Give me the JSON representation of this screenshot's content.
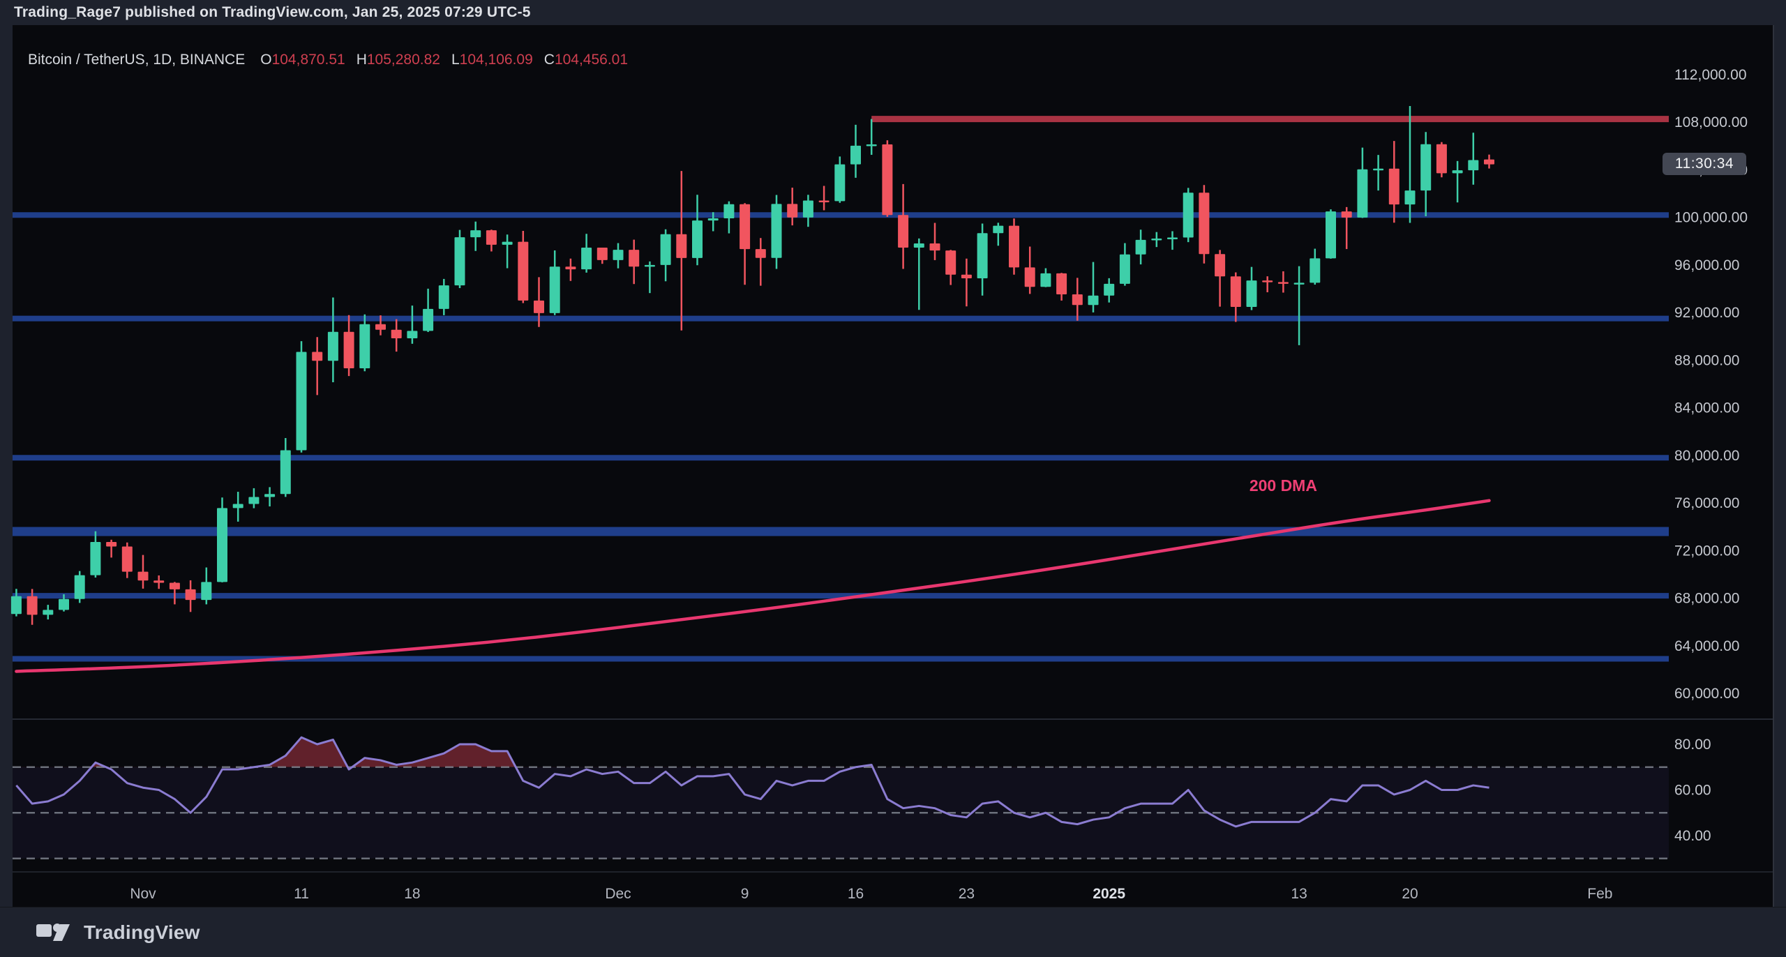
{
  "header": {
    "published_line": "Trading_Rage7 published on TradingView.com, Jan 25, 2025 07:29 UTC-5"
  },
  "chart": {
    "symbol_line": "Bitcoin / TetherUS, 1D, BINANCE",
    "ohlc": {
      "o_label": "O",
      "o": "104,870.51",
      "h_label": "H",
      "h": "105,280.82",
      "l_label": "L",
      "l": "104,106.09",
      "c_label": "C",
      "c": "104,456.01"
    }
  },
  "countdown": {
    "value": "11:30:34"
  },
  "footer": {
    "brand": "TradingView"
  },
  "colors": {
    "page_bg": "#1e222d",
    "chart_bg": "#08090d",
    "up": "#3ecfa9",
    "down": "#f1555f",
    "sr_line": "#1f3e8a",
    "resistance": "#a93343",
    "dma": "#e8376f",
    "dma_label": "#ef3f74",
    "rsi_line": "#8b7cd1",
    "rsi_fill": "#61212b",
    "rsi_band": "rgba(128,98,220,0.07)",
    "guide": "#7d818c",
    "axis_text": "#c5c8cf",
    "time_text": "#b4b8c1",
    "time_text_bold": "#dfe2e8",
    "separator": "#262a34",
    "axis_border": "#2e323c"
  },
  "chart_data": {
    "type": "candlestick",
    "title": "Bitcoin / TetherUS, 1D, BINANCE",
    "price_axis_ticks": [
      112000,
      108000,
      104000,
      100000,
      96000,
      92000,
      88000,
      84000,
      80000,
      76000,
      72000,
      68000,
      64000,
      60000
    ],
    "time_axis_ticks": [
      {
        "label": "Nov",
        "index": 8,
        "bold": false
      },
      {
        "label": "11",
        "index": 18,
        "bold": false
      },
      {
        "label": "18",
        "index": 25,
        "bold": false
      },
      {
        "label": "Dec",
        "index": 38,
        "bold": false
      },
      {
        "label": "9",
        "index": 46,
        "bold": false
      },
      {
        "label": "16",
        "index": 53,
        "bold": false
      },
      {
        "label": "23",
        "index": 60,
        "bold": false
      },
      {
        "label": "2025",
        "index": 69,
        "bold": true
      },
      {
        "label": "13",
        "index": 81,
        "bold": false
      },
      {
        "label": "20",
        "index": 88,
        "bold": false
      },
      {
        "label": "Feb",
        "index": 100,
        "bold": false
      }
    ],
    "support_resistance_levels": [
      {
        "price": 100200,
        "thickness": 8
      },
      {
        "price": 91500,
        "thickness": 8
      },
      {
        "price": 79800,
        "thickness": 8
      },
      {
        "price": 73600,
        "thickness": 13
      },
      {
        "price": 68200,
        "thickness": 8
      },
      {
        "price": 62900,
        "thickness": 8
      }
    ],
    "resistance_line": {
      "price": 108270,
      "start_index": 54
    },
    "dma": {
      "label": "200 DMA",
      "label_anchor": {
        "index": 80,
        "price": 77000
      },
      "points": [
        [
          0,
          61850
        ],
        [
          6,
          62100
        ],
        [
          12,
          62500
        ],
        [
          18,
          63000
        ],
        [
          24,
          63600
        ],
        [
          30,
          64300
        ],
        [
          36,
          65200
        ],
        [
          42,
          66200
        ],
        [
          48,
          67200
        ],
        [
          54,
          68300
        ],
        [
          60,
          69400
        ],
        [
          66,
          70600
        ],
        [
          72,
          71900
        ],
        [
          78,
          73200
        ],
        [
          84,
          74500
        ],
        [
          89,
          75400
        ],
        [
          93,
          76200
        ]
      ]
    },
    "rsi": {
      "axis_ticks": [
        80,
        60,
        40
      ],
      "guides": [
        70,
        50,
        30
      ],
      "values": [
        62,
        54,
        55,
        58,
        64,
        72,
        69,
        63,
        61,
        60,
        56,
        50,
        57,
        69,
        69,
        70,
        71,
        75,
        83,
        80,
        82,
        69,
        74,
        73,
        71,
        72,
        74,
        76,
        80,
        80,
        77,
        77,
        64,
        61,
        67,
        66,
        69,
        67,
        68,
        63,
        63,
        68,
        62,
        66,
        66,
        67,
        58,
        56,
        64,
        62,
        64,
        64,
        68,
        70,
        71,
        56,
        52,
        53,
        52,
        49,
        48,
        54,
        55,
        50,
        48,
        50,
        46,
        45,
        47,
        48,
        52,
        54,
        54,
        54,
        60,
        51,
        47,
        44,
        46,
        46,
        46,
        46,
        50,
        56,
        55,
        62,
        62,
        58,
        60,
        64,
        60,
        60,
        62,
        61
      ]
    },
    "candles": [
      [
        "2024-10-24",
        66670,
        68780,
        66470,
        68160
      ],
      [
        "2024-10-25",
        68160,
        68770,
        65760,
        66600
      ],
      [
        "2024-10-26",
        66600,
        67440,
        66210,
        67010
      ],
      [
        "2024-10-27",
        67010,
        68330,
        66880,
        67930
      ],
      [
        "2024-10-28",
        67930,
        70280,
        67600,
        69930
      ],
      [
        "2024-10-29",
        69930,
        73620,
        69730,
        72720
      ],
      [
        "2024-10-30",
        72720,
        72910,
        71410,
        72340
      ],
      [
        "2024-10-31",
        72340,
        72680,
        69690,
        70220
      ],
      [
        "2024-11-01",
        70220,
        71630,
        68800,
        69480
      ],
      [
        "2024-11-02",
        69480,
        69910,
        68780,
        69290
      ],
      [
        "2024-11-03",
        69290,
        69360,
        67480,
        68740
      ],
      [
        "2024-11-04",
        68740,
        69500,
        66840,
        67850
      ],
      [
        "2024-11-05",
        67850,
        70580,
        67480,
        69360
      ],
      [
        "2024-11-06",
        69360,
        76460,
        69330,
        75570
      ],
      [
        "2024-11-07",
        75570,
        76940,
        74430,
        75920
      ],
      [
        "2024-11-08",
        75920,
        77240,
        75560,
        76500
      ],
      [
        "2024-11-09",
        76500,
        77330,
        75710,
        76750
      ],
      [
        "2024-11-10",
        76750,
        81460,
        76510,
        80430
      ],
      [
        "2024-11-11",
        80430,
        89600,
        80240,
        88700
      ],
      [
        "2024-11-12",
        88700,
        89940,
        85070,
        87950
      ],
      [
        "2024-11-13",
        87950,
        93270,
        86150,
        90380
      ],
      [
        "2024-11-14",
        90380,
        91790,
        86670,
        87320
      ],
      [
        "2024-11-15",
        87320,
        91850,
        87070,
        91030
      ],
      [
        "2024-11-16",
        91030,
        91770,
        90090,
        90560
      ],
      [
        "2024-11-17",
        90560,
        91450,
        88720,
        89840
      ],
      [
        "2024-11-18",
        89840,
        92590,
        89380,
        90460
      ],
      [
        "2024-11-19",
        90460,
        94010,
        90370,
        92310
      ],
      [
        "2024-11-20",
        92310,
        94830,
        91780,
        94290
      ],
      [
        "2024-11-21",
        94290,
        98950,
        94060,
        98330
      ],
      [
        "2024-11-22",
        98330,
        99650,
        97180,
        98920
      ],
      [
        "2024-11-23",
        98920,
        98970,
        97140,
        97700
      ],
      [
        "2024-11-24",
        97700,
        98560,
        95730,
        97950
      ],
      [
        "2024-11-25",
        97950,
        98870,
        92800,
        93010
      ],
      [
        "2024-11-26",
        93010,
        94980,
        90790,
        91960
      ],
      [
        "2024-11-27",
        91960,
        97230,
        91790,
        95860
      ],
      [
        "2024-11-28",
        95860,
        96540,
        94660,
        95640
      ],
      [
        "2024-11-29",
        95640,
        98620,
        95360,
        97460
      ],
      [
        "2024-11-30",
        97460,
        97460,
        96100,
        96410
      ],
      [
        "2024-12-01",
        96410,
        97840,
        95720,
        97280
      ],
      [
        "2024-12-02",
        97280,
        98130,
        94400,
        95860
      ],
      [
        "2024-12-03",
        95860,
        96300,
        93640,
        96000
      ],
      [
        "2024-12-04",
        96000,
        99000,
        94630,
        98590
      ],
      [
        "2024-12-05",
        98590,
        103900,
        90500,
        96590
      ],
      [
        "2024-12-06",
        96590,
        101900,
        95980,
        99740
      ],
      [
        "2024-12-07",
        99740,
        100440,
        98840,
        99920
      ],
      [
        "2024-12-08",
        99920,
        101350,
        98660,
        101110
      ],
      [
        "2024-12-09",
        101110,
        101200,
        94340,
        97340
      ],
      [
        "2024-12-10",
        97340,
        98270,
        94260,
        96600
      ],
      [
        "2024-12-11",
        96600,
        101890,
        95670,
        101130
      ],
      [
        "2024-12-12",
        101130,
        102500,
        99330,
        100000
      ],
      [
        "2024-12-13",
        100000,
        101900,
        99210,
        101420
      ],
      [
        "2024-12-14",
        101420,
        102650,
        100600,
        101370
      ],
      [
        "2024-12-15",
        101370,
        105120,
        101230,
        104460
      ],
      [
        "2024-12-16",
        104460,
        107790,
        103330,
        106030
      ],
      [
        "2024-12-17",
        106030,
        108270,
        105260,
        106140
      ],
      [
        "2024-12-18",
        106140,
        106480,
        100050,
        100200
      ],
      [
        "2024-12-19",
        100200,
        102800,
        95670,
        97460
      ],
      [
        "2024-12-20",
        97460,
        98230,
        92230,
        97810
      ],
      [
        "2024-12-21",
        97810,
        99540,
        96410,
        97220
      ],
      [
        "2024-12-22",
        97220,
        97270,
        94320,
        95190
      ],
      [
        "2024-12-23",
        95190,
        96540,
        92520,
        94880
      ],
      [
        "2024-12-24",
        94880,
        99480,
        93430,
        98680
      ],
      [
        "2024-12-25",
        98680,
        99550,
        97620,
        99300
      ],
      [
        "2024-12-26",
        99300,
        99910,
        95190,
        95800
      ],
      [
        "2024-12-27",
        95800,
        97550,
        93570,
        94160
      ],
      [
        "2024-12-28",
        94160,
        95730,
        94140,
        95300
      ],
      [
        "2024-12-29",
        95300,
        95340,
        93010,
        93530
      ],
      [
        "2024-12-30",
        93530,
        94920,
        91320,
        92640
      ],
      [
        "2024-12-31",
        92640,
        96250,
        92020,
        93430
      ],
      [
        "2025-01-01",
        93430,
        94890,
        92850,
        94420
      ],
      [
        "2025-01-02",
        94420,
        97840,
        94260,
        96890
      ],
      [
        "2025-01-03",
        96890,
        98970,
        96050,
        98110
      ],
      [
        "2025-01-04",
        98110,
        98770,
        97510,
        98220
      ],
      [
        "2025-01-05",
        98220,
        98840,
        97280,
        98310
      ],
      [
        "2025-01-06",
        98310,
        102480,
        97920,
        102080
      ],
      [
        "2025-01-07",
        102080,
        102720,
        96130,
        96920
      ],
      [
        "2025-01-08",
        96920,
        97260,
        92500,
        95040
      ],
      [
        "2025-01-09",
        95040,
        95380,
        91220,
        92480
      ],
      [
        "2025-01-10",
        92480,
        95840,
        92210,
        94700
      ],
      [
        "2025-01-11",
        94700,
        95050,
        93710,
        94570
      ],
      [
        "2025-01-12",
        94570,
        95470,
        93680,
        94490
      ],
      [
        "2025-01-13",
        94490,
        95900,
        89260,
        94510
      ],
      [
        "2025-01-14",
        94510,
        97370,
        94350,
        96560
      ],
      [
        "2025-01-15",
        96560,
        100680,
        96530,
        100500
      ],
      [
        "2025-01-16",
        100500,
        100870,
        97340,
        99990
      ],
      [
        "2025-01-17",
        99990,
        105870,
        99950,
        104040
      ],
      [
        "2025-01-18",
        104040,
        105250,
        102260,
        104100
      ],
      [
        "2025-01-19",
        104100,
        106420,
        99560,
        101090
      ],
      [
        "2025-01-20",
        101090,
        109360,
        99540,
        102260
      ],
      [
        "2025-01-21",
        102260,
        107180,
        100100,
        106150
      ],
      [
        "2025-01-22",
        106150,
        106330,
        103370,
        103710
      ],
      [
        "2025-01-23",
        103710,
        104740,
        101260,
        103960
      ],
      [
        "2025-01-24",
        103960,
        107120,
        102750,
        104820
      ],
      [
        "2025-01-25",
        104870,
        105280,
        104110,
        104460
      ]
    ]
  }
}
